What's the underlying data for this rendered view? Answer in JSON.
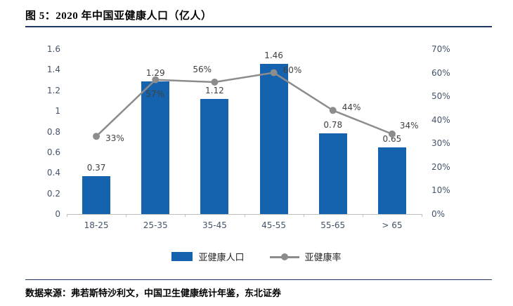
{
  "title": "图 5：2020 年中国亚健康人口（亿人）",
  "source": "数据来源：弗若斯特沙利文，中国卫生健康统计年鉴，东北证券",
  "colors": {
    "bar": "#1563AE",
    "line": "#8C8C8C",
    "accent_rule": "#1F3864",
    "axis_text": "#44546A",
    "axis_line": "#BFBFBF"
  },
  "chart_data": {
    "type": "bar",
    "subtype": "bar+line combo",
    "title": "2020 年中国亚健康人口（亿人）",
    "categories": [
      "18-25",
      "25-35",
      "35-45",
      "45-55",
      "55-65",
      "> 65"
    ],
    "series": [
      {
        "name": "亚健康人口",
        "type": "bar",
        "axis": "left",
        "values": [
          0.37,
          1.29,
          1.12,
          1.46,
          0.78,
          0.65
        ],
        "labels": [
          "0.37",
          "1.29",
          "1.12",
          "1.46",
          "0.78",
          "0.65"
        ]
      },
      {
        "name": "亚健康率",
        "type": "line",
        "axis": "right",
        "unit": "%",
        "values": [
          33,
          57,
          56,
          60,
          44,
          34
        ],
        "labels": [
          "33%",
          "57%",
          "56%",
          "60%",
          "44%",
          "34%"
        ]
      }
    ],
    "left_axis": {
      "min": 0,
      "max": 1.6,
      "step": 0.2,
      "ticks": [
        "0",
        "0.2",
        "0.4",
        "0.6",
        "0.8",
        "1",
        "1.2",
        "1.4",
        "1.6"
      ]
    },
    "right_axis": {
      "min": 0,
      "max": 70,
      "step": 10,
      "ticks": [
        "0%",
        "10%",
        "20%",
        "30%",
        "40%",
        "50%",
        "60%",
        "70%"
      ]
    },
    "legend_position": "bottom",
    "grid": false
  }
}
